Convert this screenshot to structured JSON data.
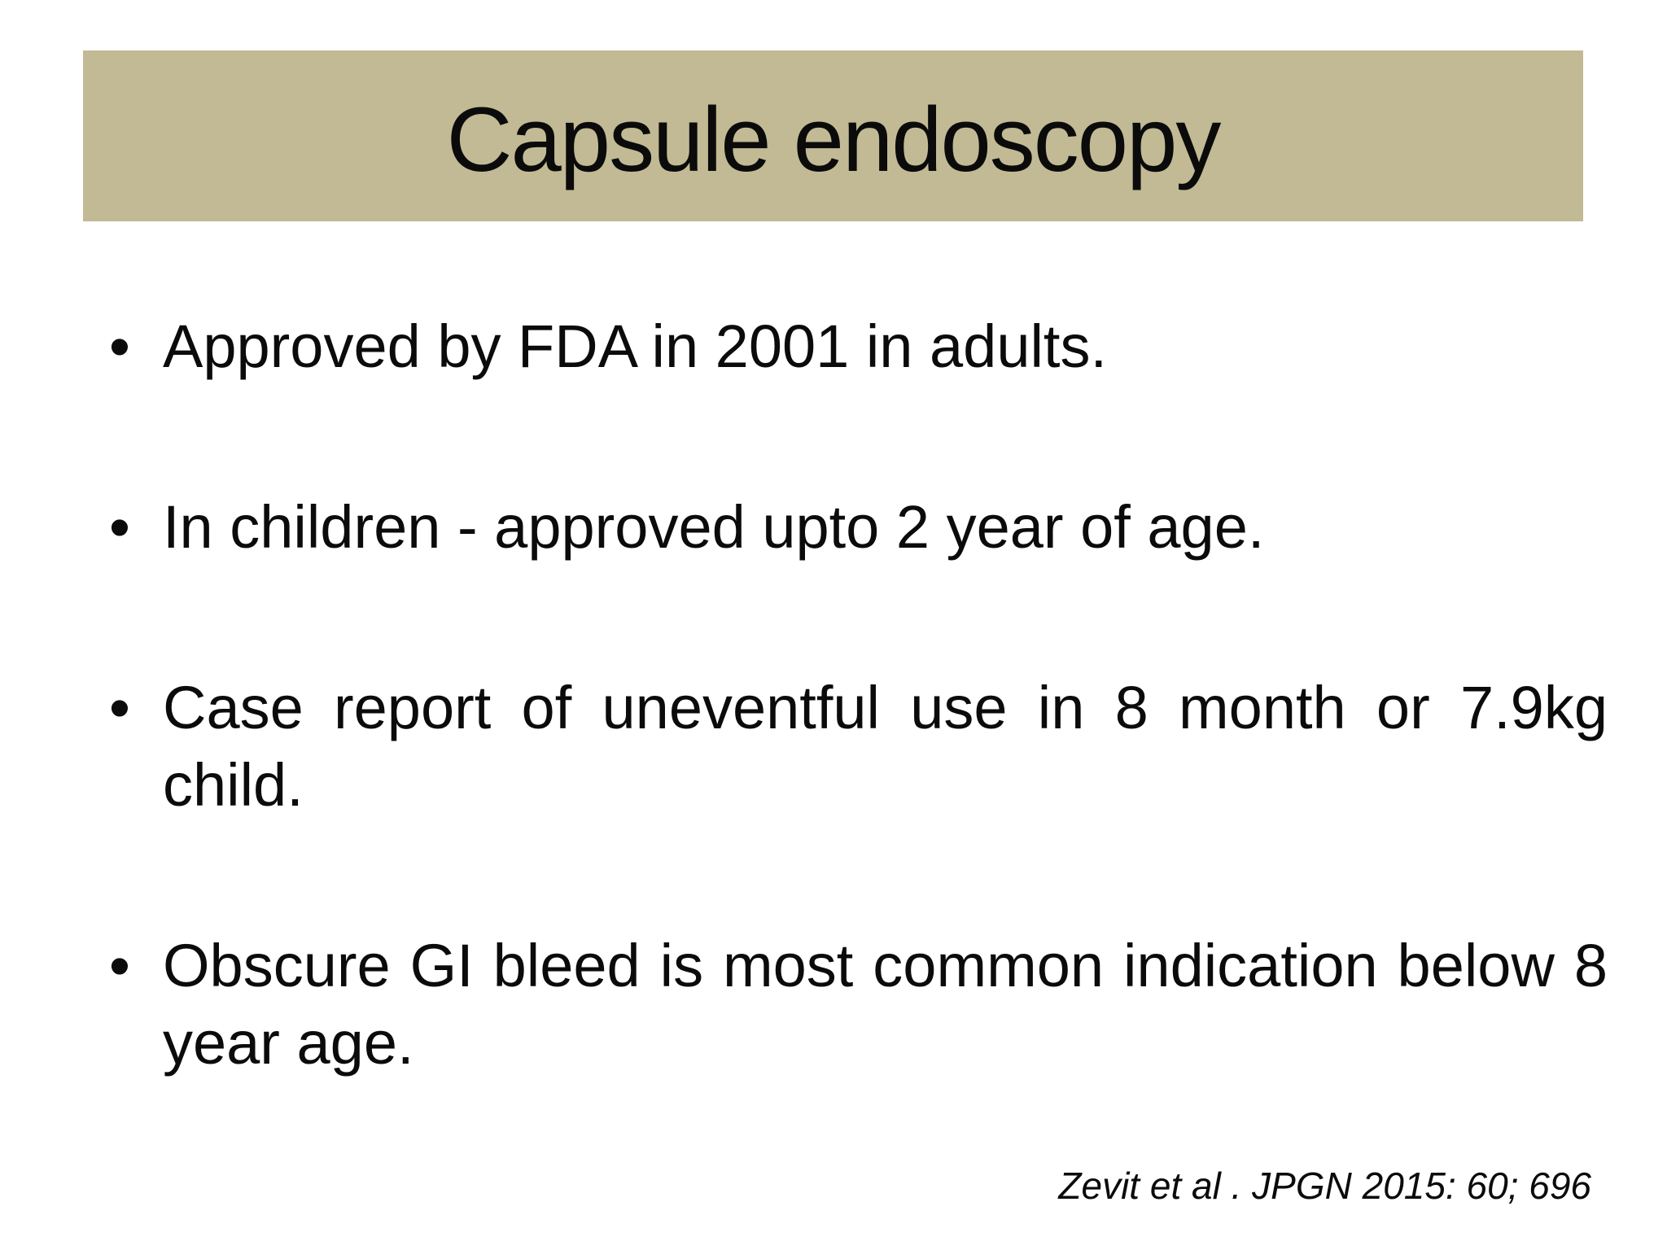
{
  "slide": {
    "title": "Capsule endoscopy",
    "bullet_char": "•",
    "bullets": [
      "Approved by FDA in 2001 in adults.",
      "In children - approved upto 2 year of age.",
      "Case report of uneventful use in 8 month or 7.9kg child.",
      "Obscure GI bleed is most common indication below 8 year age."
    ],
    "citation": "Zevit et al . JPGN 2015: 60; 696",
    "colors": {
      "title_bar": "#c2ba94",
      "text": "#000000",
      "background": "#ffffff"
    }
  }
}
